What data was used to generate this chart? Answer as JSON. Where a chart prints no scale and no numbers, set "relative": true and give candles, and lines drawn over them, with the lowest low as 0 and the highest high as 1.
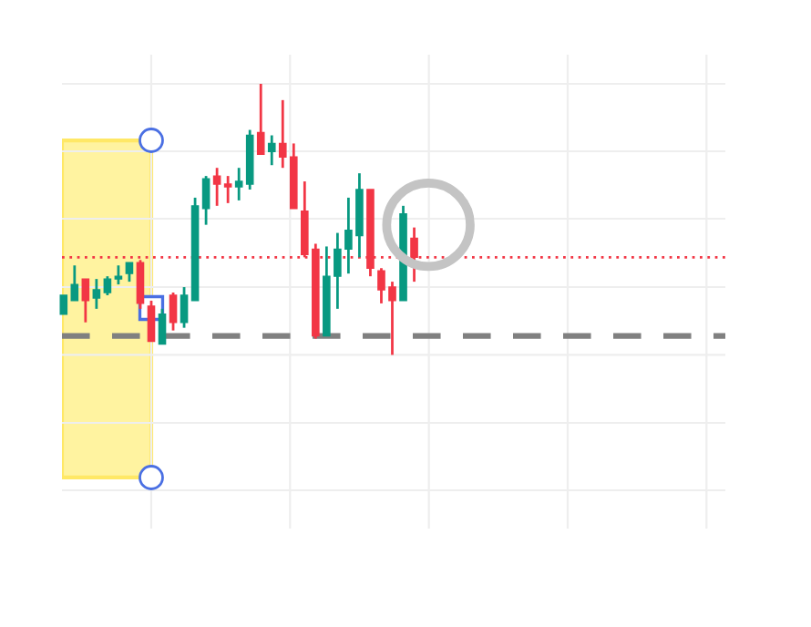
{
  "chart_data": {
    "type": "candlestick",
    "relative": true,
    "grid": true,
    "categories": [
      null,
      null,
      null,
      null,
      null,
      null,
      null,
      null,
      null,
      null,
      null,
      null,
      null,
      null,
      null,
      null,
      null,
      null,
      null,
      null,
      null,
      null,
      null,
      null,
      null,
      null,
      null,
      null,
      null,
      null,
      null,
      null,
      null
    ],
    "ohlc": [
      [
        0.15,
        0.22,
        0.15,
        0.22
      ],
      [
        0.2,
        0.33,
        0.2,
        0.26
      ],
      [
        0.28,
        0.28,
        0.12,
        0.2
      ],
      [
        0.21,
        0.28,
        0.17,
        0.24
      ],
      [
        0.23,
        0.29,
        0.22,
        0.28
      ],
      [
        0.28,
        0.33,
        0.26,
        0.29
      ],
      [
        0.3,
        0.34,
        0.27,
        0.34
      ],
      [
        0.34,
        0.35,
        0.17,
        0.19
      ],
      [
        0.18,
        0.2,
        0.05,
        0.05
      ],
      [
        0.04,
        0.17,
        0.04,
        0.15
      ],
      [
        0.22,
        0.23,
        0.09,
        0.12
      ],
      [
        0.12,
        0.25,
        0.1,
        0.22
      ],
      [
        0.2,
        0.58,
        0.2,
        0.55
      ],
      [
        0.54,
        0.66,
        0.48,
        0.65
      ],
      [
        0.66,
        0.69,
        0.55,
        0.63
      ],
      [
        0.63,
        0.66,
        0.56,
        0.62
      ],
      [
        0.62,
        0.69,
        0.57,
        0.64
      ],
      [
        0.63,
        0.83,
        0.61,
        0.81
      ],
      [
        0.82,
        1.0,
        0.74,
        0.74
      ],
      [
        0.75,
        0.81,
        0.7,
        0.78
      ],
      [
        0.78,
        0.94,
        0.69,
        0.73
      ],
      [
        0.73,
        0.78,
        0.54,
        0.54
      ],
      [
        0.53,
        0.64,
        0.36,
        0.37
      ],
      [
        0.39,
        0.41,
        0.06,
        0.07
      ],
      [
        0.07,
        0.4,
        0.07,
        0.29
      ],
      [
        0.29,
        0.45,
        0.17,
        0.39
      ],
      [
        0.39,
        0.58,
        0.3,
        0.46
      ],
      [
        0.44,
        0.67,
        0.36,
        0.61
      ],
      [
        0.61,
        0.61,
        0.29,
        0.32
      ],
      [
        0.31,
        0.32,
        0.19,
        0.24
      ],
      [
        0.25,
        0.27,
        0.0,
        0.2
      ],
      [
        0.2,
        0.55,
        0.2,
        0.52
      ],
      [
        0.43,
        0.47,
        0.27,
        0.36
      ]
    ],
    "colors": [
      "#089981",
      "#089981",
      "#f23645",
      "#089981",
      "#089981",
      "#089981",
      "#089981",
      "#f23645",
      "#f23645",
      "#089981",
      "#f23645",
      "#089981",
      "#089981",
      "#089981",
      "#f23645",
      "#f23645",
      "#089981",
      "#089981",
      "#f23645",
      "#089981",
      "#f23645",
      "#f23645",
      "#f23645",
      "#f23645",
      "#089981",
      "#089981",
      "#089981",
      "#089981",
      "#f23645",
      "#f23645",
      "#f23645",
      "#089981",
      "#f23645"
    ],
    "ref_lines": [
      {
        "axis": "y",
        "value": 0.36,
        "color": "#f23645",
        "line_style": "dotted"
      },
      {
        "axis": "y",
        "value": 0.07,
        "color": "#808080",
        "line_style": "dashed"
      }
    ]
  }
}
